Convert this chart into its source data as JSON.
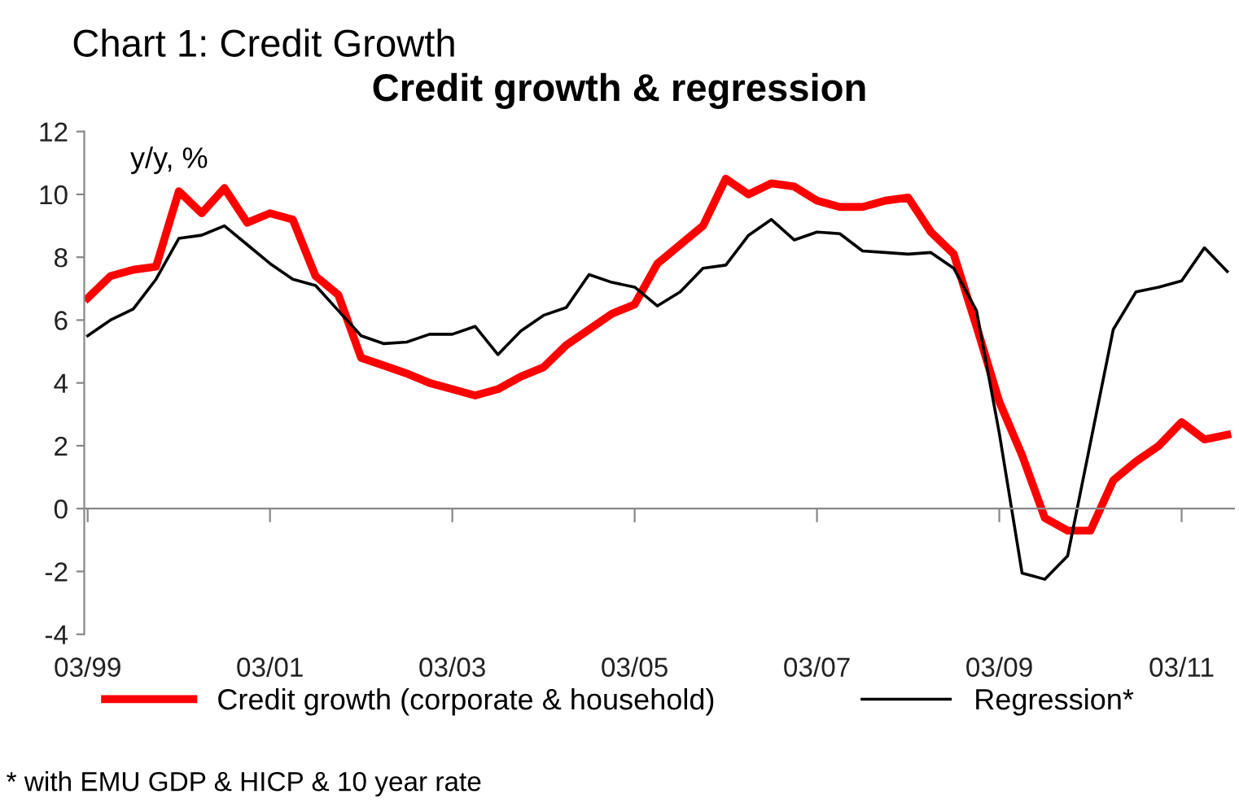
{
  "chart_data": {
    "type": "line",
    "title": "Credit growth & regression",
    "subtitle": "Chart 1: Credit Growth",
    "ylabel": "y/y, %",
    "categories": [
      "03/99",
      null,
      null,
      null,
      null,
      null,
      null,
      null,
      "03/01",
      null,
      null,
      null,
      null,
      null,
      null,
      null,
      "03/03",
      null,
      null,
      null,
      null,
      null,
      null,
      null,
      "03/05",
      null,
      null,
      null,
      null,
      null,
      null,
      null,
      "03/07",
      null,
      null,
      null,
      null,
      null,
      null,
      null,
      "03/09",
      null,
      null,
      null,
      null,
      null,
      null,
      null,
      "03/11",
      null,
      null
    ],
    "series": [
      {
        "name": "Credit growth (corporate & household)",
        "color": "#ff0000",
        "values": [
          6.7,
          7.4,
          7.6,
          7.7,
          10.1,
          9.4,
          10.2,
          9.1,
          9.4,
          9.2,
          7.4,
          6.8,
          4.8,
          4.55,
          4.3,
          4.0,
          3.8,
          3.6,
          3.8,
          4.2,
          4.5,
          5.2,
          5.7,
          6.2,
          6.5,
          7.8,
          8.4,
          9.0,
          10.5,
          10.0,
          10.35,
          10.25,
          9.8,
          9.6,
          9.6,
          9.8,
          9.9,
          8.8,
          8.1,
          5.8,
          3.4,
          1.7,
          -0.3,
          -0.7,
          -0.7,
          0.9,
          1.5,
          2.0,
          2.75,
          2.2,
          2.35
        ]
      },
      {
        "name": "Regression*",
        "color": "#000000",
        "values": [
          5.5,
          6.0,
          6.35,
          7.3,
          8.6,
          8.7,
          9.0,
          8.4,
          7.8,
          7.3,
          7.1,
          6.3,
          5.5,
          5.25,
          5.3,
          5.55,
          5.55,
          5.8,
          4.9,
          5.65,
          6.15,
          6.4,
          7.45,
          7.2,
          7.05,
          6.45,
          6.9,
          7.65,
          7.75,
          8.7,
          9.2,
          8.55,
          8.8,
          8.75,
          8.2,
          8.15,
          8.1,
          8.15,
          7.65,
          6.3,
          2.4,
          -2.05,
          -2.25,
          -1.5,
          2.1,
          5.7,
          6.9,
          7.05,
          7.25,
          8.3,
          7.55
        ]
      }
    ],
    "ylim": [
      -4,
      12
    ],
    "yticks": [
      -4,
      -2,
      0,
      2,
      4,
      6,
      8,
      10,
      12
    ],
    "legend": "bottom",
    "marker": "none",
    "line_style": "solid",
    "annotations": [
      "* with EMU GDP & HICP & 10 year rate"
    ]
  }
}
